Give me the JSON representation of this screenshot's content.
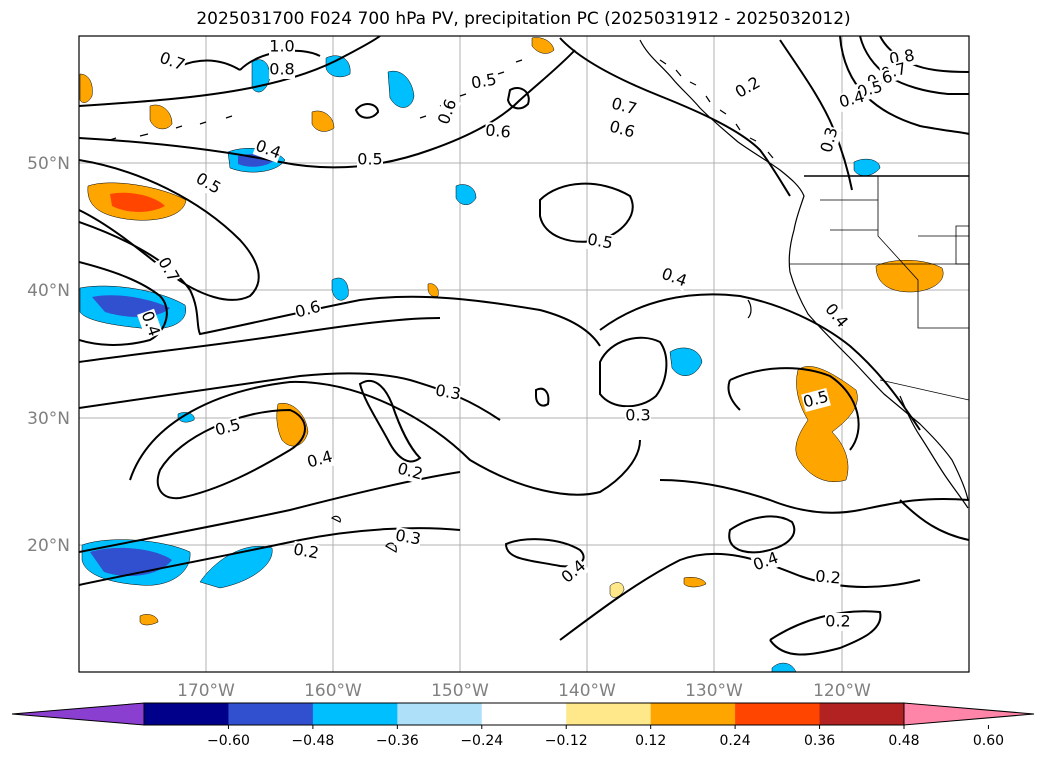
{
  "title": "2025031700 F024 700 hPa PV, precipitation PC (2025031912 - 2025032012)",
  "lon_ticks": [
    "170°W",
    "160°W",
    "150°W",
    "140°W",
    "130°W",
    "120°W"
  ],
  "lat_ticks": [
    "50°N",
    "40°N",
    "30°N",
    "20°N"
  ],
  "colorbar": {
    "ticks": [
      "−0.60",
      "−0.48",
      "−0.36",
      "−0.24",
      "−0.12",
      "0.12",
      "0.24",
      "0.36",
      "0.48",
      "0.60"
    ],
    "colors": [
      "#8b3fd0",
      "#00008b",
      "#3050d0",
      "#00bfff",
      "#aee0fa",
      "#ffffff",
      "#ffe88a",
      "#ffa500",
      "#ff4500",
      "#b22222",
      "#ff85a8"
    ]
  },
  "contour_labels": [
    "1.0",
    "0.7",
    "0.8",
    "0.5",
    "0.6",
    "0.6",
    "0.7",
    "0.6",
    "0.2",
    "0.8",
    "0.7",
    "0.6",
    "0.5",
    "0.4",
    "0.3",
    "0.5",
    "0.4",
    "0.5",
    "0.5",
    "0.4",
    "0.7",
    "0.6",
    "0.4",
    "0.4",
    "0.3",
    "0.3",
    "0.5",
    "0.5",
    "0.4",
    "0.2",
    "0.3",
    "0.4",
    "0.4",
    "0.2",
    "0.2",
    "0.2"
  ]
}
